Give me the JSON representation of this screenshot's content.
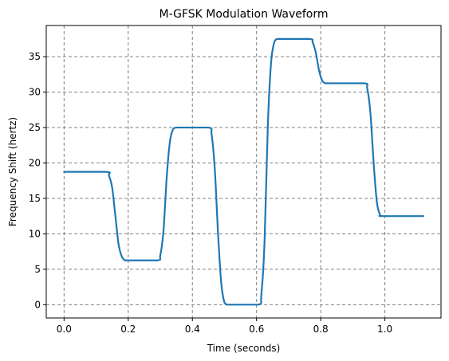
{
  "chart_data": {
    "type": "line",
    "title": "M-GFSK Modulation Waveform",
    "xlabel": "Time (seconds)",
    "ylabel": "Frequency Shift (hertz)",
    "xlim": [
      -0.0555,
      1.175
    ],
    "ylim": [
      -1.875,
      39.4
    ],
    "xticks": [
      0.0,
      0.2,
      0.4,
      0.6,
      0.8,
      1.0
    ],
    "xtick_labels": [
      "0.0",
      "0.2",
      "0.4",
      "0.6",
      "0.8",
      "1.0"
    ],
    "yticks": [
      0,
      5,
      10,
      15,
      20,
      25,
      30,
      35
    ],
    "ytick_labels": [
      "0",
      "5",
      "10",
      "15",
      "20",
      "25",
      "30",
      "35"
    ],
    "grid": true,
    "grid_style": "dashed",
    "line_color": "#1f77b4",
    "series": [
      {
        "x": [
          0.0,
          0.13,
          0.14,
          0.15,
          0.16,
          0.17,
          0.18,
          0.19,
          0.2,
          0.29,
          0.3,
          0.31,
          0.32,
          0.33,
          0.34,
          0.35,
          0.36,
          0.45,
          0.46,
          0.47,
          0.48,
          0.49,
          0.5,
          0.51,
          0.52,
          0.605,
          0.615,
          0.625,
          0.635,
          0.645,
          0.655,
          0.665,
          0.675,
          0.765,
          0.775,
          0.785,
          0.795,
          0.805,
          0.815,
          0.83,
          0.935,
          0.945,
          0.955,
          0.965,
          0.975,
          0.985,
          0.995,
          1.12
        ],
        "y": [
          18.75,
          18.75,
          18.2,
          16.5,
          12.5,
          8.5,
          6.8,
          6.25,
          6.25,
          6.25,
          7.0,
          10.5,
          18.0,
          23.0,
          24.8,
          25.0,
          25.0,
          25.0,
          24.0,
          19.0,
          10.0,
          3.0,
          0.3,
          0.0,
          0.0,
          0.0,
          1.5,
          9.0,
          25.0,
          34.0,
          37.0,
          37.5,
          37.5,
          37.5,
          37.0,
          35.5,
          33.0,
          31.6,
          31.25,
          31.25,
          31.25,
          30.5,
          27.0,
          20.0,
          14.5,
          12.7,
          12.5,
          12.5
        ]
      }
    ]
  }
}
